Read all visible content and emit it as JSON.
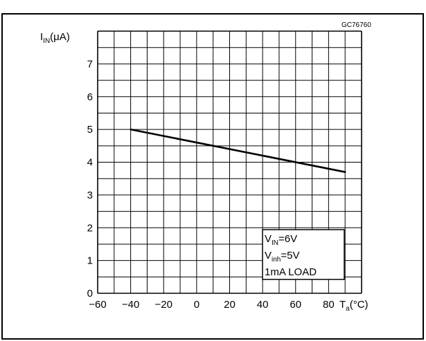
{
  "figure_code": "GC76760",
  "chart_data": {
    "type": "line",
    "title": "",
    "xlabel": {
      "main": "T",
      "sub": "a",
      "unit": "(°C)"
    },
    "ylabel": {
      "main": "I",
      "sub": "IN",
      "unit": "(μA)"
    },
    "xlim": [
      -60,
      100
    ],
    "ylim": [
      0,
      8
    ],
    "x_ticks": [
      "−60",
      "−40",
      "−20",
      "0",
      "20",
      "40",
      "60",
      "80"
    ],
    "x_tick_values": [
      -60,
      -40,
      -20,
      0,
      20,
      40,
      60,
      80
    ],
    "y_ticks": [
      "0",
      "1",
      "2",
      "3",
      "4",
      "5",
      "6",
      "7"
    ],
    "y_tick_values": [
      0,
      1,
      2,
      3,
      4,
      5,
      6,
      7
    ],
    "grid": true,
    "grid_minor_step": {
      "x": 10,
      "y": 0.5
    },
    "series": [
      {
        "values": [
          {
            "x": -40,
            "y": 5.0
          },
          {
            "x": 90,
            "y": 3.7
          }
        ]
      }
    ],
    "annotation": {
      "line1": {
        "main": "V",
        "sub": "IN",
        "rest": "=6V"
      },
      "line2": {
        "main": "V",
        "sub": "inh",
        "rest": "=5V"
      },
      "line3": "1mA  LOAD"
    }
  }
}
